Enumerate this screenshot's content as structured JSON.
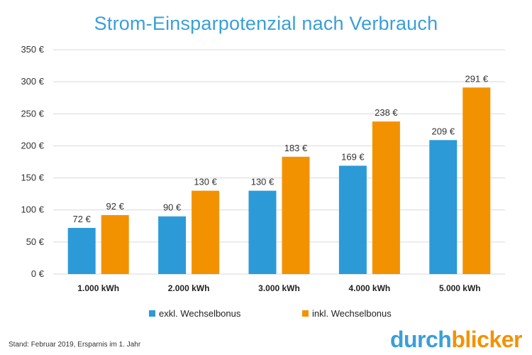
{
  "colors": {
    "title": "#3a9fd8",
    "series_blue": "#2d9ad8",
    "series_orange": "#f39200",
    "grid": "#d9d9d9"
  },
  "chart_data": {
    "type": "bar",
    "title": "Strom-Einsparpotenzial nach Verbrauch",
    "categories": [
      "1.000 kWh",
      "2.000 kWh",
      "3.000 kWh",
      "4.000 kWh",
      "5.000 kWh"
    ],
    "series": [
      {
        "name": "exkl. Wechselbonus",
        "color": "#2d9ad8",
        "values": [
          72,
          90,
          130,
          169,
          209
        ],
        "labels": [
          "72 €",
          "90 €",
          "130 €",
          "169 €",
          "209 €"
        ]
      },
      {
        "name": "inkl. Wechselbonus",
        "color": "#f39200",
        "values": [
          92,
          130,
          183,
          238,
          291
        ],
        "labels": [
          "92 €",
          "130 €",
          "183 €",
          "238 €",
          "291 €"
        ]
      }
    ],
    "ylim": [
      0,
      350
    ],
    "yticks": [
      0,
      50,
      100,
      150,
      200,
      250,
      300,
      350
    ],
    "ytick_labels": [
      "0 €",
      "50 €",
      "100 €",
      "150 €",
      "200 €",
      "250 €",
      "300 €",
      "350 €"
    ],
    "xlabel": "",
    "ylabel": "",
    "grid": true,
    "legend_position": "bottom"
  },
  "footer": {
    "note": "Stand: Februar 2019, Ersparnis im 1. Jahr"
  },
  "logo": {
    "part1": "durch",
    "part2": "blicker"
  }
}
